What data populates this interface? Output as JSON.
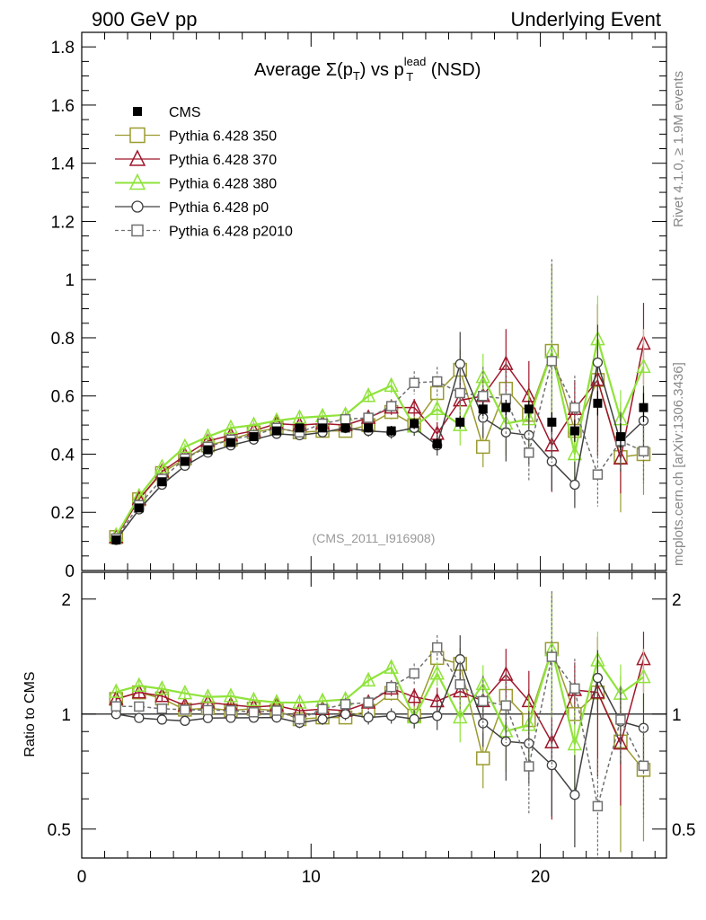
{
  "header": {
    "left": "900 GeV pp",
    "right": "Underlying Event"
  },
  "side_labels": {
    "rivet": "Rivet 4.1.0, ≥ 1.9M events",
    "mcplots": "mcplots.cern.ch [arXiv:1306.3436]"
  },
  "title": {
    "prefix": "Average ",
    "sigma": "Σ(p",
    "sub_T": "T",
    "close": ")",
    "vs": " vs p",
    "sup": "lead",
    "sub_T2": "T",
    "suffix": " (NSD)"
  },
  "analysis_label": "(CMS_2011_I916908)",
  "ratio_ylabel": "Ratio to CMS",
  "colors": {
    "cms": "#000000",
    "p350": "#9b9b30",
    "p370": "#a0162b",
    "p380": "#8fe33a",
    "p0": "#404040",
    "p2010": "#707070"
  },
  "chart_data": {
    "type": "scatter",
    "title": "Average Σ(pT) vs pT lead (NSD)",
    "xlabel": "",
    "ylabel": "",
    "xlim": [
      0,
      25.5
    ],
    "main_ylim": [
      0,
      1.85
    ],
    "ratio_ylim": [
      0.42,
      2.35
    ],
    "main_yticks": [
      "0",
      "0.2",
      "0.4",
      "0.6",
      "0.8",
      "1",
      "1.2",
      "1.4",
      "1.6",
      "1.8"
    ],
    "main_ytick_values": [
      0,
      0.2,
      0.4,
      0.6,
      0.8,
      1.0,
      1.2,
      1.4,
      1.6,
      1.8
    ],
    "ratio_yticks": [
      "0.5",
      "1",
      "2"
    ],
    "ratio_ytick_values": [
      0.5,
      1,
      2
    ],
    "xticks": [
      "0",
      "10",
      "20"
    ],
    "xtick_values": [
      0,
      10,
      20
    ],
    "x": [
      1.5,
      2.5,
      3.5,
      4.5,
      5.5,
      6.5,
      7.5,
      8.5,
      9.5,
      10.5,
      11.5,
      12.5,
      13.5,
      14.5,
      15.5,
      16.5,
      17.5,
      18.5,
      19.5,
      20.5,
      21.5,
      22.5,
      23.5,
      24.5
    ],
    "cms": {
      "name": "CMS",
      "values": [
        0.105,
        0.215,
        0.305,
        0.375,
        0.415,
        0.44,
        0.46,
        0.48,
        0.49,
        0.49,
        0.49,
        0.49,
        0.48,
        0.505,
        0.435,
        0.51,
        0.555,
        0.56,
        0.555,
        0.51,
        0.48,
        0.575,
        0.46,
        0.56
      ],
      "errors": [
        0.003,
        0.005,
        0.006,
        0.007,
        0.008,
        0.009,
        0.01,
        0.011,
        0.012,
        0.013,
        0.014,
        0.016,
        0.017,
        0.019,
        0.02,
        0.022,
        0.024,
        0.027,
        0.03,
        0.034,
        0.038,
        0.042,
        0.046,
        0.05
      ]
    },
    "series": [
      {
        "name": "Pythia 6.428 350",
        "key": "p350",
        "marker": "square-open",
        "dashed": false,
        "size": 7,
        "values": [
          0.115,
          0.245,
          0.335,
          0.385,
          0.43,
          0.45,
          0.475,
          0.49,
          0.475,
          0.48,
          0.48,
          0.5,
          0.545,
          0.5,
          0.61,
          0.69,
          0.425,
          0.625,
          0.535,
          0.755,
          0.48,
          0.655,
          0.39,
          0.4
        ],
        "errors": [
          0.004,
          0.008,
          0.01,
          0.012,
          0.013,
          0.014,
          0.015,
          0.016,
          0.017,
          0.018,
          0.02,
          0.022,
          0.025,
          0.03,
          0.04,
          0.07,
          0.07,
          0.09,
          0.11,
          0.3,
          0.1,
          0.26,
          0.19,
          0.14
        ]
      },
      {
        "name": "Pythia 6.428 370",
        "key": "p370",
        "marker": "triangle-open",
        "dashed": false,
        "size": 7,
        "values": [
          0.115,
          0.245,
          0.34,
          0.395,
          0.445,
          0.465,
          0.48,
          0.505,
          0.5,
          0.505,
          0.5,
          0.525,
          0.56,
          0.56,
          0.47,
          0.585,
          0.6,
          0.71,
          0.6,
          0.43,
          0.555,
          0.655,
          0.385,
          0.78
        ],
        "errors": [
          0.004,
          0.008,
          0.01,
          0.012,
          0.013,
          0.014,
          0.015,
          0.016,
          0.017,
          0.018,
          0.02,
          0.022,
          0.025,
          0.03,
          0.04,
          0.07,
          0.08,
          0.12,
          0.12,
          0.16,
          0.1,
          0.26,
          0.12,
          0.14
        ]
      },
      {
        "name": "Pythia 6.428 380",
        "key": "p380",
        "marker": "triangle-open",
        "dashed": false,
        "size": 7,
        "values": [
          0.12,
          0.255,
          0.355,
          0.425,
          0.46,
          0.49,
          0.5,
          0.515,
          0.525,
          0.53,
          0.535,
          0.6,
          0.635,
          0.495,
          0.555,
          0.5,
          0.665,
          0.505,
          0.52,
          0.75,
          0.4,
          0.795,
          0.52,
          0.7
        ],
        "errors": [
          0.004,
          0.008,
          0.01,
          0.012,
          0.013,
          0.014,
          0.015,
          0.016,
          0.017,
          0.018,
          0.02,
          0.022,
          0.025,
          0.03,
          0.04,
          0.07,
          0.08,
          0.11,
          0.1,
          0.25,
          0.1,
          0.15,
          0.1,
          0.13
        ]
      },
      {
        "name": "Pythia 6.428 p0",
        "key": "p0",
        "marker": "circle-open",
        "dashed": false,
        "size": 6,
        "values": [
          0.105,
          0.21,
          0.295,
          0.36,
          0.405,
          0.43,
          0.45,
          0.47,
          0.465,
          0.475,
          0.49,
          0.48,
          0.475,
          0.49,
          0.43,
          0.71,
          0.525,
          0.475,
          0.465,
          0.375,
          0.295,
          0.715,
          0.44,
          0.515
        ],
        "errors": [
          0.003,
          0.006,
          0.008,
          0.01,
          0.011,
          0.012,
          0.013,
          0.014,
          0.015,
          0.016,
          0.018,
          0.02,
          0.022,
          0.027,
          0.035,
          0.11,
          0.07,
          0.1,
          0.1,
          0.1,
          0.08,
          0.13,
          0.1,
          0.12
        ]
      },
      {
        "name": "Pythia 6.428 p2010",
        "key": "p2010",
        "marker": "square-open-small",
        "dashed": true,
        "size": 5,
        "values": [
          0.11,
          0.225,
          0.315,
          0.385,
          0.425,
          0.45,
          0.465,
          0.49,
          0.475,
          0.505,
          0.52,
          0.525,
          0.565,
          0.645,
          0.65,
          0.61,
          0.6,
          0.59,
          0.405,
          0.72,
          0.56,
          0.33,
          0.445,
          0.41
        ],
        "errors": [
          0.004,
          0.007,
          0.009,
          0.011,
          0.012,
          0.013,
          0.014,
          0.015,
          0.016,
          0.017,
          0.019,
          0.021,
          0.024,
          0.04,
          0.05,
          0.09,
          0.1,
          0.12,
          0.1,
          0.35,
          0.11,
          0.11,
          0.1,
          0.11
        ]
      }
    ]
  }
}
